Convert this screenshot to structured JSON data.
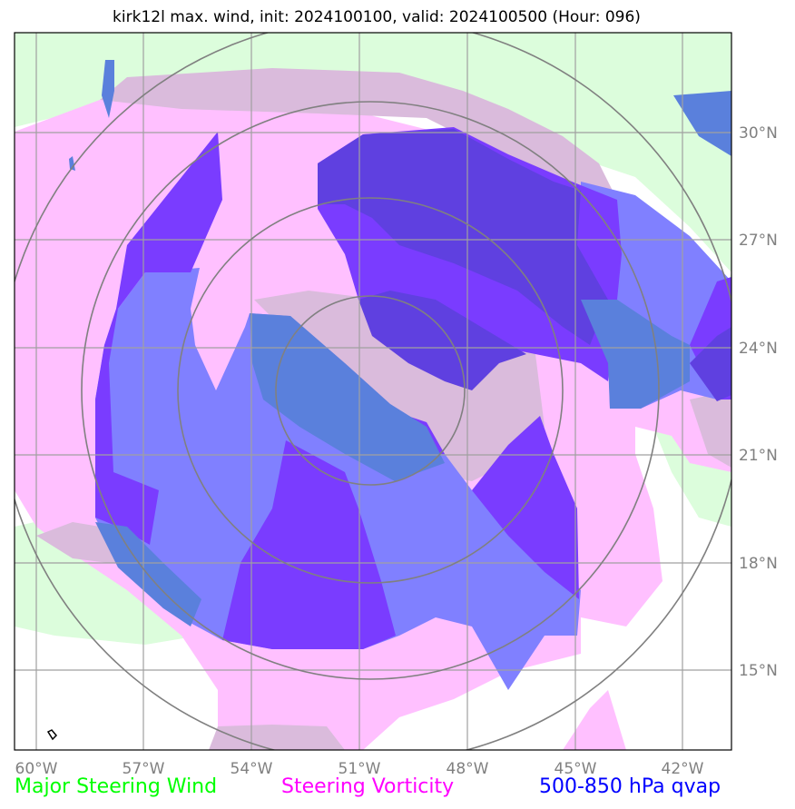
{
  "title": "kirk12l max. wind, init: 2024100100, valid: 2024100500 (Hour: 096)",
  "lon_ticks": [
    "60°W",
    "57°W",
    "54°W",
    "51°W",
    "48°W",
    "45°W",
    "42°W"
  ],
  "lat_ticks": [
    "30°N",
    "27°N",
    "24°N",
    "21°N",
    "18°N",
    "15°N"
  ],
  "legend": {
    "wind": "Major Steering Wind",
    "vorticity": "Steering Vorticity",
    "qvap": "500-850 hPa qvap"
  },
  "colors": {
    "wind": "#00ff00",
    "vorticity": "#ff00ff",
    "qvap": "#0000ff",
    "wind_fill": "#dcfddc",
    "vorticity_fill": "#ffc0ff",
    "overlap_fill": "#dabbdc",
    "qvap_light": "#8080ff",
    "qvap_mid": "#7a3cff",
    "qvap_dark": "#5f40e0",
    "qvap_blend": "#5a80dc"
  }
}
